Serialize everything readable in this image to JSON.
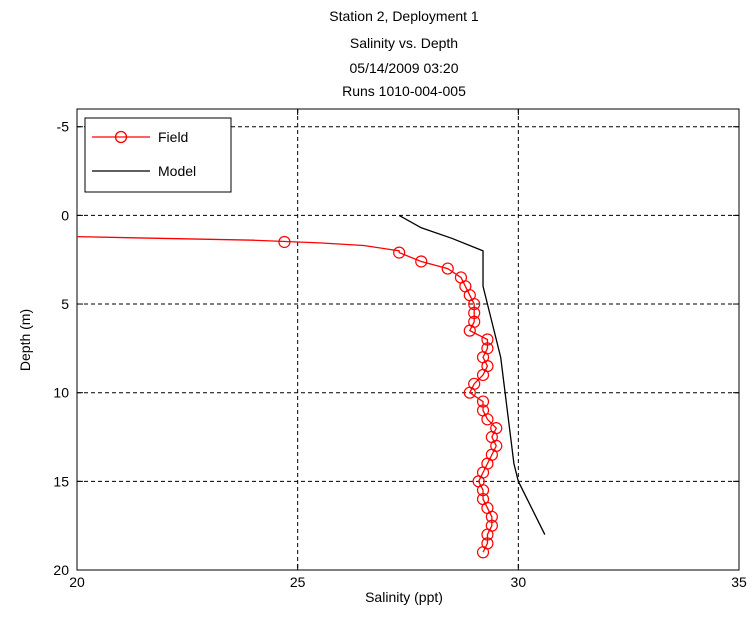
{
  "chart_data": {
    "type": "line",
    "title": [
      "Station 2, Deployment 1",
      "Salinity vs. Depth",
      "05/14/2009 03:20",
      "Runs 1010-004-005"
    ],
    "xlabel": "Salinity (ppt)",
    "ylabel": "Depth (m)",
    "xlim": [
      20,
      35
    ],
    "ylim": [
      -6,
      20
    ],
    "y_reversed": true,
    "xticks": [
      20,
      25,
      30,
      35
    ],
    "yticks": [
      -5,
      0,
      5,
      10,
      15,
      20
    ],
    "grid": true,
    "legend_position": "top-left",
    "series": [
      {
        "name": "Field",
        "color": "#ff0000",
        "marker": "circle",
        "line_points": [
          [
            20.0,
            1.2
          ],
          [
            22.0,
            1.3
          ],
          [
            24.0,
            1.4
          ],
          [
            25.5,
            1.55
          ],
          [
            26.5,
            1.7
          ],
          [
            27.3,
            2.0
          ]
        ],
        "points": [
          [
            24.7,
            1.5
          ],
          [
            27.3,
            2.1
          ],
          [
            27.8,
            2.6
          ],
          [
            28.4,
            3.0
          ],
          [
            28.7,
            3.5
          ],
          [
            28.8,
            4.0
          ],
          [
            28.9,
            4.5
          ],
          [
            29.0,
            5.0
          ],
          [
            29.0,
            5.5
          ],
          [
            29.0,
            6.0
          ],
          [
            28.9,
            6.5
          ],
          [
            29.3,
            7.0
          ],
          [
            29.3,
            7.5
          ],
          [
            29.2,
            8.0
          ],
          [
            29.3,
            8.5
          ],
          [
            29.2,
            9.0
          ],
          [
            29.0,
            9.5
          ],
          [
            28.9,
            10.0
          ],
          [
            29.2,
            10.5
          ],
          [
            29.2,
            11.0
          ],
          [
            29.3,
            11.5
          ],
          [
            29.5,
            12.0
          ],
          [
            29.4,
            12.5
          ],
          [
            29.5,
            13.0
          ],
          [
            29.4,
            13.5
          ],
          [
            29.3,
            14.0
          ],
          [
            29.2,
            14.5
          ],
          [
            29.1,
            15.0
          ],
          [
            29.2,
            15.5
          ],
          [
            29.2,
            16.0
          ],
          [
            29.3,
            16.5
          ],
          [
            29.4,
            17.0
          ],
          [
            29.4,
            17.5
          ],
          [
            29.3,
            18.0
          ],
          [
            29.3,
            18.5
          ],
          [
            29.2,
            19.0
          ]
        ]
      },
      {
        "name": "Model",
        "color": "#000000",
        "points": [
          [
            27.3,
            0.0
          ],
          [
            27.8,
            0.7
          ],
          [
            28.5,
            1.3
          ],
          [
            29.2,
            2.0
          ],
          [
            29.2,
            4.0
          ],
          [
            29.4,
            6.0
          ],
          [
            29.6,
            8.0
          ],
          [
            29.7,
            10.0
          ],
          [
            29.8,
            12.0
          ],
          [
            29.9,
            14.0
          ],
          [
            30.0,
            15.0
          ],
          [
            30.2,
            16.0
          ],
          [
            30.4,
            17.0
          ],
          [
            30.6,
            18.0
          ]
        ]
      }
    ]
  }
}
